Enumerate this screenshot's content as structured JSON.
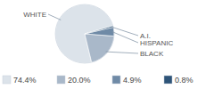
{
  "chart_data": {
    "type": "pie",
    "categories": [
      "WHITE",
      "BLACK",
      "HISPANIC",
      "A.I."
    ],
    "values": [
      74.4,
      20.0,
      4.9,
      0.8
    ],
    "value_labels": [
      "74.4%",
      "20.0%",
      "4.9%",
      "0.8%"
    ],
    "colors": [
      "#dce3ea",
      "#a9b8c9",
      "#6f8aa6",
      "#2e5478"
    ]
  }
}
